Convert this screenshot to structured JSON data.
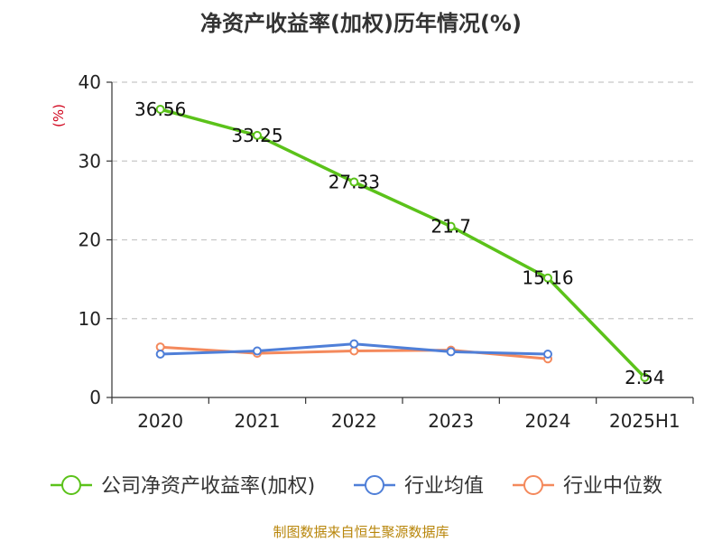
{
  "header": {
    "title": "净资产收益率(加权)历年情况(%)"
  },
  "footer": {
    "source": "制图数据来自恒生聚源数据库"
  },
  "chart_data": {
    "type": "line",
    "title": "净资产收益率(加权)历年情况(%)",
    "xlabel": "",
    "ylabel": "(%)",
    "categories": [
      "2020",
      "2021",
      "2022",
      "2023",
      "2024",
      "2025H1"
    ],
    "ylim": [
      0,
      40
    ],
    "yticks": [
      0,
      10,
      20,
      30,
      40
    ],
    "grid": true,
    "legend_position": "bottom",
    "series": [
      {
        "name": "公司净资产收益率(加权)",
        "color": "#5bc21a",
        "values": [
          36.56,
          33.25,
          27.33,
          21.7,
          15.16,
          2.54
        ],
        "data_labels": [
          "36.56",
          "33.25",
          "27.33",
          "21.7",
          "15.16",
          "2.54"
        ]
      },
      {
        "name": "行业均值",
        "color": "#4f7fd8",
        "values": [
          5.5,
          5.9,
          6.8,
          5.8,
          5.5,
          null
        ]
      },
      {
        "name": "行业中位数",
        "color": "#f4895c",
        "values": [
          6.4,
          5.6,
          5.9,
          6.0,
          4.9,
          null
        ]
      }
    ]
  }
}
